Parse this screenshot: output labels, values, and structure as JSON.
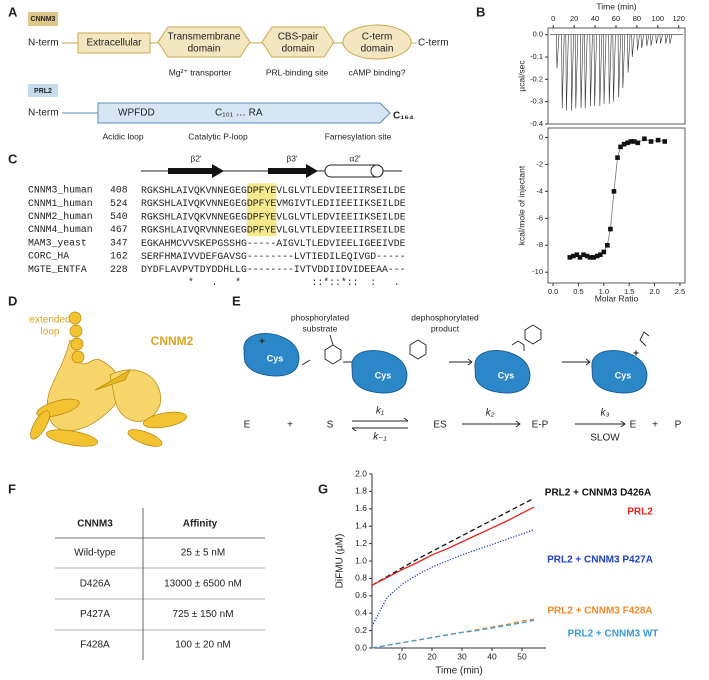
{
  "panel_a": {
    "label": "A",
    "cnnm3": {
      "tag": "CNNM3",
      "n_term": "N-term",
      "domains": [
        [
          "Extracellular"
        ],
        [
          "Transmembrane",
          "domain"
        ],
        [
          "CBS-pair",
          "domain"
        ],
        [
          "C-term",
          "domain"
        ]
      ],
      "c_term": "C-term",
      "notes": [
        "Mg²⁺ transporter",
        "PRL-binding site",
        "cAMP binding?"
      ]
    },
    "prl2": {
      "tag": "PRL2",
      "n_term": "N-term",
      "motifs": [
        "WPFDD",
        "C₁₀₁ … RA"
      ],
      "c_term": "C₁₆₄",
      "notes": [
        "Acidic loop",
        "Catalytic P-loop",
        "Farnesylation site"
      ]
    }
  },
  "panel_b": {
    "label": "B"
  },
  "panel_c": {
    "label": "C",
    "structure": [
      "β2'",
      "β3'",
      "α2'"
    ],
    "rows": [
      {
        "name": "CNNM3_human",
        "start": 408,
        "sequence": [
          "RGKSHLAIVQKVNNEGEG",
          "DPFYE",
          "VLGLVTLEDVIEEIIRSEILDE"
        ]
      },
      {
        "name": "CNNM1_human",
        "start": 524,
        "sequence": [
          "RGKSHLAIVQKVNNEGEG",
          "DPFYE",
          "VMGIVTLEDIIEEIIKSEILDE"
        ]
      },
      {
        "name": "CNNM2_human",
        "start": 540,
        "sequence": [
          "RGKSHLAIVQKVNNEGEG",
          "DPFYE",
          "VLGLVTLEDVIEEIIKSEILDE"
        ]
      },
      {
        "name": "CNNM4_human",
        "start": 467,
        "sequence": [
          "RGKSHLAIVQRVNNEGEG",
          "DPFYE",
          "VLGLVTLEDVIEEIIRSEILDE"
        ]
      },
      {
        "name": "MAM3_yeast",
        "start": 347,
        "sequence": [
          "EGKAHMCVVSKEPGSSHG-----AIGVLTLEDVIEELIGEEIVDE"
        ]
      },
      {
        "name": "CORC_HA",
        "start": 162,
        "sequence": [
          "SERFHMAIVVDEFGAVSG--------LVTIEDILEQIVGD-----"
        ]
      },
      {
        "name": "MGTE_ENTFA",
        "start": 228,
        "sequence": [
          "DYDFLAVPVTDYDDHLLG--------IVTVDDIIDVIDEEAA---"
        ]
      }
    ],
    "conservation": "        *   .   *            ::*::*::  :   ."
  },
  "panel_d": {
    "label": "D",
    "annotation": [
      "extended",
      "loop"
    ],
    "protein": "CNNM2"
  },
  "panel_e": {
    "label": "E",
    "enzyme": "Cys",
    "signs": [
      "+",
      "+"
    ],
    "substrate_label": [
      "phosphorylated",
      "substrate"
    ],
    "product_label": [
      "dephosphorylated",
      "product"
    ],
    "scheme": [
      "E",
      "+",
      "S",
      "ES",
      "E-P",
      "E",
      "+",
      "P"
    ],
    "rates": [
      "k₁",
      "k₋₁",
      "k₂",
      "k₃"
    ],
    "note": "SLOW"
  },
  "panel_f": {
    "label": "F",
    "table": {
      "header": [
        "CNNM3",
        "Affinity"
      ],
      "rows": [
        [
          "Wild-type",
          "25 ± 5 nM"
        ],
        [
          "D426A",
          "13000 ± 6500 nM"
        ],
        [
          "P427A",
          "725 ± 150 nM"
        ],
        [
          "F428A",
          "100 ± 20 nM"
        ]
      ]
    }
  },
  "panel_g": {
    "label": "G"
  },
  "chart_data": [
    {
      "type": "spike",
      "x_label": "Time (min)",
      "y_label": "µcal/sec",
      "x_axis": "top",
      "frame": true,
      "x": [
        3,
        8,
        12,
        17,
        21,
        26,
        30,
        35,
        39,
        44,
        48,
        53,
        57,
        62,
        66,
        71,
        75,
        80,
        84,
        89,
        93,
        98,
        102,
        107,
        111
      ],
      "values": [
        -0.15,
        -0.33,
        -0.34,
        -0.34,
        -0.33,
        -0.33,
        -0.33,
        -0.32,
        -0.32,
        -0.32,
        -0.31,
        -0.31,
        -0.3,
        -0.28,
        -0.24,
        -0.17,
        -0.1,
        -0.07,
        -0.06,
        -0.05,
        -0.05,
        -0.04,
        -0.04,
        -0.04,
        -0.04
      ],
      "color": "#333333",
      "xlim": [
        -5,
        126
      ],
      "ylim": [
        -0.4,
        0.03
      ],
      "xticks": [
        0,
        20,
        40,
        60,
        80,
        100,
        120
      ],
      "yticks": [
        -0.4,
        -0.3,
        -0.2,
        -0.1,
        {
          "value": 0,
          "label": "0.0"
        }
      ]
    },
    {
      "type": "scatter",
      "x_label": "Molar Ratio",
      "y_label": "kcal/mole of injectant",
      "frame": true,
      "connect": true,
      "x": [
        0.33,
        0.4,
        0.47,
        0.53,
        0.6,
        0.67,
        0.73,
        0.8,
        0.87,
        0.93,
        1.0,
        1.07,
        1.13,
        1.2,
        1.27,
        1.33,
        1.4,
        1.47,
        1.53,
        1.6,
        1.67,
        1.8,
        1.93,
        2.07,
        2.2
      ],
      "values": [
        -8.9,
        -8.8,
        -8.7,
        -8.9,
        -8.7,
        -8.8,
        -8.9,
        -8.9,
        -8.8,
        -8.7,
        -8.5,
        -8.0,
        -6.8,
        -4.0,
        -1.5,
        -0.7,
        -0.5,
        -0.4,
        -0.3,
        -0.3,
        -0.4,
        -0.1,
        -0.3,
        -0.2,
        -0.3
      ],
      "color": "#111111",
      "xlim": [
        -0.1,
        2.6
      ],
      "ylim": [
        -10.8,
        0.7
      ],
      "xticks": [
        {
          "value": 0,
          "label": "0.0"
        },
        0.5,
        {
          "value": 1,
          "label": "1.0"
        },
        1.5,
        {
          "value": 2,
          "label": "2.0"
        },
        2.5
      ],
      "yticks": [
        -10,
        -8,
        -6,
        -4,
        -2,
        0
      ]
    },
    {
      "type": "line",
      "x_label": "Time (min)",
      "y_label": "DiFMU (µM)",
      "frame": false,
      "x": [
        0,
        5,
        10,
        15,
        20,
        25,
        30,
        35,
        40,
        45,
        50,
        54
      ],
      "series": [
        {
          "name": "PRL2 + CNNM3 D426A",
          "color": "#111111",
          "style": "dashed",
          "values": [
            0.72,
            0.82,
            0.92,
            1.02,
            1.11,
            1.2,
            1.29,
            1.38,
            1.47,
            1.56,
            1.65,
            1.72
          ]
        },
        {
          "name": "PRL2",
          "color": "#e0241b",
          "style": "solid",
          "values": [
            0.72,
            0.81,
            0.9,
            0.98,
            1.07,
            1.14,
            1.22,
            1.3,
            1.38,
            1.46,
            1.55,
            1.62
          ]
        },
        {
          "name": "PRL2 + CNNM3 P427A",
          "color": "#1f3fbf",
          "style": "dotted",
          "values": [
            0.25,
            0.58,
            0.73,
            0.84,
            0.93,
            1.0,
            1.07,
            1.13,
            1.19,
            1.25,
            1.31,
            1.36
          ]
        },
        {
          "name": "PRL2 + CNNM3 F428A",
          "color": "#f08a2a",
          "style": "dashed",
          "values": [
            0,
            0.03,
            0.06,
            0.09,
            0.12,
            0.15,
            0.18,
            0.21,
            0.24,
            0.27,
            0.31,
            0.33
          ]
        },
        {
          "name": "PRL2 + CNNM3 WT",
          "color": "#3a9ad9",
          "style": "dashed",
          "values": [
            0,
            0.03,
            0.06,
            0.09,
            0.12,
            0.15,
            0.18,
            0.2,
            0.23,
            0.26,
            0.29,
            0.32
          ]
        }
      ],
      "xlim": [
        0,
        58
      ],
      "ylim": [
        0,
        2
      ],
      "xticks": [
        10,
        20,
        30,
        40,
        50
      ],
      "yticks": [
        {
          "value": 0,
          "label": "0.0"
        },
        0.2,
        0.4,
        0.6,
        0.8,
        {
          "value": 1,
          "label": "1.0"
        },
        1.2,
        1.4,
        1.6,
        1.8,
        {
          "value": 2,
          "label": "2.0"
        }
      ]
    }
  ]
}
